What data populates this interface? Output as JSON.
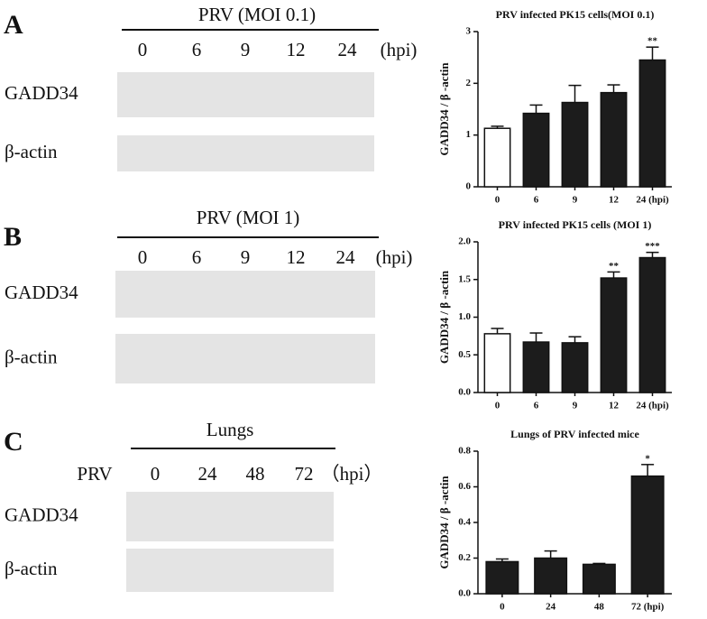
{
  "panel_labels": [
    "A",
    "B",
    "C"
  ],
  "blots": [
    {
      "title": "PRV (MOI 0.1)",
      "lanes": [
        "0",
        "6",
        "9",
        "12",
        "24"
      ],
      "unit": "(hpi)",
      "rows": [
        "GADD34",
        "β-actin"
      ]
    },
    {
      "title": "PRV (MOI 1)",
      "lanes": [
        "0",
        "6",
        "9",
        "12",
        "24"
      ],
      "unit": "(hpi)",
      "rows": [
        "GADD34",
        "β-actin"
      ]
    },
    {
      "title": "Lungs",
      "lane_label": "PRV",
      "lanes": [
        "0",
        "24",
        "48",
        "72"
      ],
      "unit": "（hpi）",
      "rows": [
        "GADD34",
        "β-actin"
      ]
    }
  ],
  "chart_data": [
    {
      "type": "bar",
      "title": "PRV infected PK15 cells(MOI 0.1)",
      "y_label": "GADD34 / β -actin",
      "categories": [
        "0",
        "6",
        "9",
        "12",
        "24 (hpi)"
      ],
      "values": [
        1.13,
        1.42,
        1.63,
        1.82,
        2.45
      ],
      "errors": [
        0.04,
        0.16,
        0.33,
        0.15,
        0.25
      ],
      "significance": [
        null,
        null,
        null,
        null,
        "**"
      ],
      "colors": [
        "#ffffff",
        "#1c1c1c",
        "#1c1c1c",
        "#1c1c1c",
        "#1c1c1c"
      ],
      "ylim": [
        0,
        3
      ],
      "yticks": [
        0,
        1,
        2,
        3
      ]
    },
    {
      "type": "bar",
      "title": "PRV infected PK15 cells (MOI 1)",
      "y_label": "GADD34 / β -actin",
      "categories": [
        "0",
        "6",
        "9",
        "12",
        "24 (hpi)"
      ],
      "values": [
        0.78,
        0.67,
        0.66,
        1.52,
        1.79
      ],
      "errors": [
        0.07,
        0.12,
        0.08,
        0.08,
        0.07
      ],
      "significance": [
        null,
        null,
        null,
        "**",
        "***"
      ],
      "colors": [
        "#ffffff",
        "#1c1c1c",
        "#1c1c1c",
        "#1c1c1c",
        "#1c1c1c"
      ],
      "ylim": [
        0,
        2
      ],
      "yticks": [
        {
          "value": 0,
          "label": "0.0"
        },
        {
          "value": 0.5,
          "label": "0.5"
        },
        {
          "value": 1,
          "label": "1.0"
        },
        {
          "value": 1.5,
          "label": "1.5"
        },
        {
          "value": 2,
          "label": "2.0"
        }
      ]
    },
    {
      "type": "bar",
      "title": "Lungs of PRV infected mice",
      "y_label": "GADD34 / β -actin",
      "categories": [
        "0",
        "24",
        "48",
        "72 (hpi)"
      ],
      "values": [
        0.18,
        0.2,
        0.165,
        0.66
      ],
      "errors": [
        0.015,
        0.04,
        0.005,
        0.065
      ],
      "significance": [
        null,
        null,
        null,
        "*"
      ],
      "colors": [
        "#1c1c1c",
        "#1c1c1c",
        "#1c1c1c",
        "#1c1c1c"
      ],
      "ylim": [
        0,
        0.8
      ],
      "yticks": [
        {
          "value": 0,
          "label": "0.0"
        },
        {
          "value": 0.2,
          "label": "0.2"
        },
        {
          "value": 0.4,
          "label": "0.4"
        },
        {
          "value": 0.6,
          "label": "0.6"
        },
        {
          "value": 0.8,
          "label": "0.8"
        }
      ]
    }
  ]
}
